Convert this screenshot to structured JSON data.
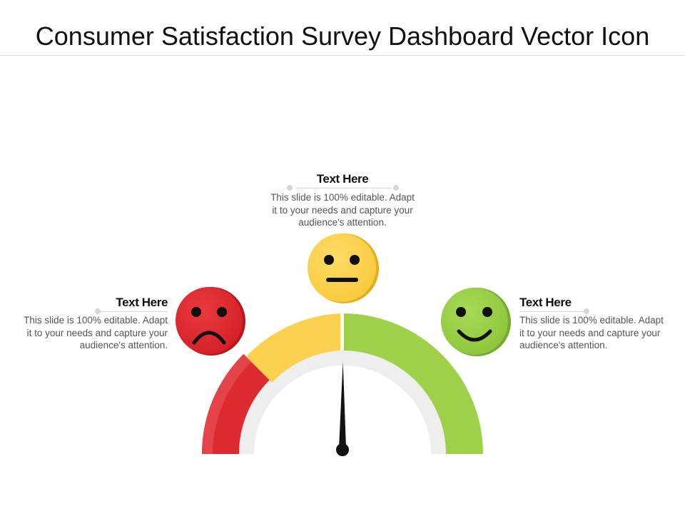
{
  "title": "Consumer Satisfaction Survey Dashboard Vector Icon",
  "blocks": {
    "left": {
      "heading": "Text Here",
      "body": [
        "This slide is 100% editable. Adapt",
        "it to your needs and capture your",
        "audience's attention."
      ]
    },
    "center": {
      "heading": "Text Here",
      "body": [
        "This slide is 100% editable. Adapt",
        "it to your needs and capture your",
        "audience's attention."
      ]
    },
    "right": {
      "heading": "Text Here",
      "body": [
        "This slide is 100% editable. Adapt",
        "it to your needs and capture your",
        "audience's attention."
      ]
    }
  },
  "gauge": {
    "segments": [
      {
        "name": "unsatisfied",
        "color": "#dd2a30"
      },
      {
        "name": "neutral",
        "color": "#fdd150"
      },
      {
        "name": "satisfied",
        "color": "#9fd04a"
      }
    ],
    "needle_color": "#111111"
  },
  "faces": [
    {
      "name": "sad-face-icon",
      "color": "#e0282e"
    },
    {
      "name": "neutral-face-icon",
      "color": "#fdd451"
    },
    {
      "name": "happy-face-icon",
      "color": "#9ad245"
    }
  ]
}
